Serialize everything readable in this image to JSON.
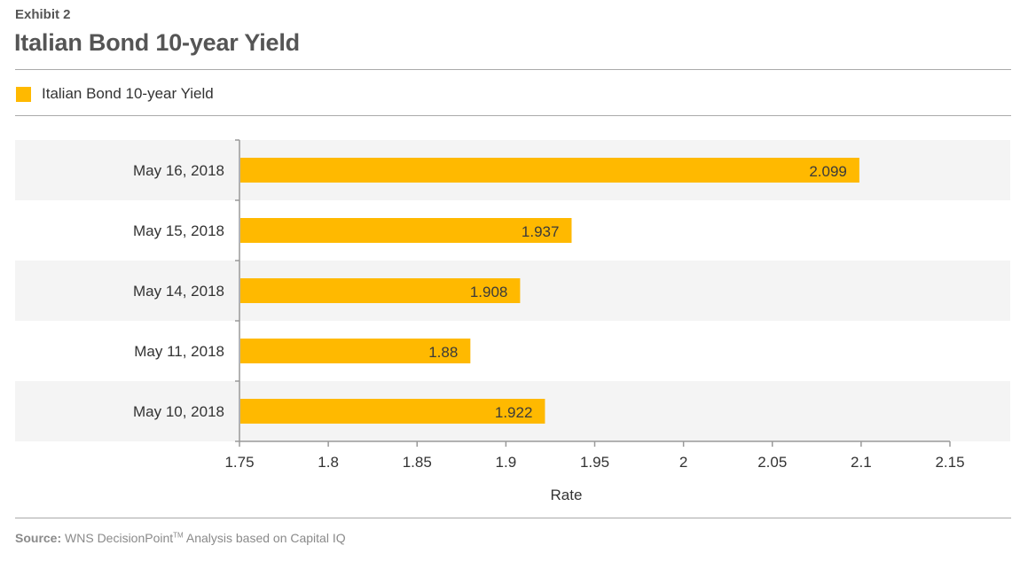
{
  "header": {
    "exhibit": "Exhibit 2",
    "title": "Italian Bond 10-year Yield"
  },
  "legend": {
    "label": "Italian Bond 10-year Yield"
  },
  "source": {
    "label": "Source:",
    "text_prefix": "WNS DecisionPoint",
    "trademark": "TM",
    "text_suffix": "Analysis based on Capital IQ"
  },
  "colors": {
    "bar": "#ffb900",
    "band": "#f4f4f4",
    "axis": "#9a9a9a",
    "rule": "#aaaaaa"
  },
  "chart_data": {
    "type": "bar",
    "orientation": "horizontal",
    "categories": [
      "May 16, 2018",
      "May 15, 2018",
      "May 14, 2018",
      "May 11, 2018",
      "May 10, 2018"
    ],
    "series": [
      {
        "name": "Italian Bond 10-year Yield",
        "values": [
          2.099,
          1.937,
          1.908,
          1.88,
          1.922
        ]
      }
    ],
    "data_labels": [
      "2.099",
      "1.937",
      "1.908",
      "1.88",
      "1.922"
    ],
    "xlabel": "Rate",
    "ylabel": "",
    "xlim": [
      1.75,
      2.15
    ],
    "xticks": [
      1.75,
      1.8,
      1.85,
      1.9,
      1.95,
      2,
      2.05,
      2.1,
      2.15
    ],
    "xtick_labels": [
      "1.75",
      "1.8",
      "1.85",
      "1.9",
      "1.95",
      "2",
      "2.05",
      "2.1",
      "2.15"
    ],
    "grid": false,
    "legend_position": "top-left"
  }
}
